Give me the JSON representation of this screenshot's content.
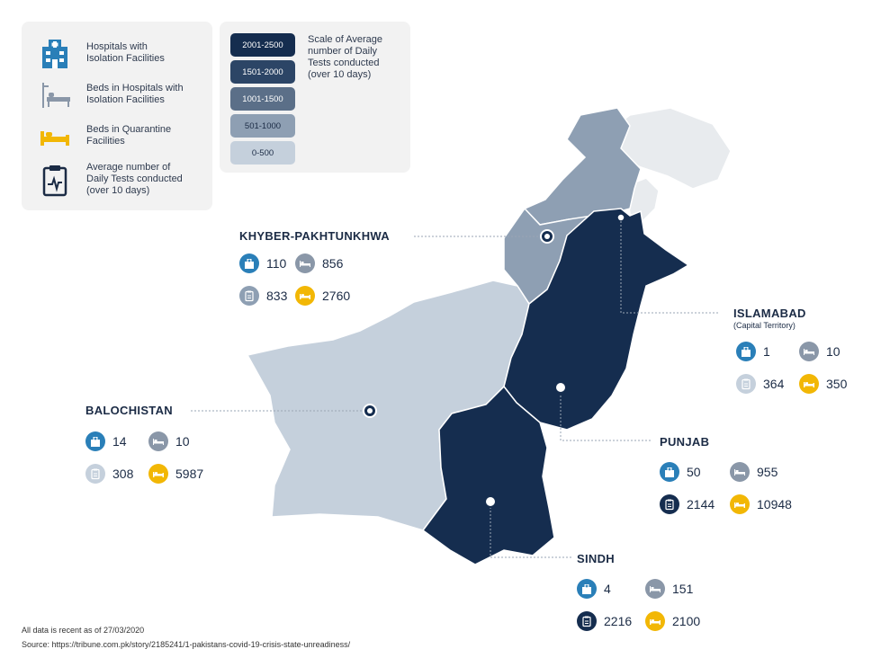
{
  "legend": {
    "items": [
      {
        "icon": "hospital-icon",
        "text": "Hospitals with\nIsolation Facilities"
      },
      {
        "icon": "hospital-bed-icon",
        "text": "Beds in Hospitals with\nIsolation Facilities"
      },
      {
        "icon": "quarantine-bed-icon",
        "text": "Beds in Quarantine\nFacilities"
      },
      {
        "icon": "clipboard-icon",
        "text": "Average number of\nDaily Tests conducted\n(over 10 days)"
      }
    ],
    "scale_title": "Scale of Average\nnumber of Daily\nTests conducted\n(over 10 days)",
    "scale": [
      {
        "label": "2001-2500",
        "color": "#152d4f"
      },
      {
        "label": "1501-2000",
        "color": "#2c4566"
      },
      {
        "label": "1001-1500",
        "color": "#5b6f88"
      },
      {
        "label": "501-1000",
        "color": "#8e9fb3"
      },
      {
        "label": "0-500",
        "color": "#c5d0dc"
      }
    ]
  },
  "colors": {
    "hospital": "#2a7fb8",
    "beds": "#8a97a8",
    "quarantine": "#f2b705",
    "tests_light": "#c5d0dc",
    "tests_mid": "#8e9fb3",
    "tests_dark": "#152d4f"
  },
  "regions": {
    "kp": {
      "name": "KHYBER-PAKHTUNKHWA",
      "hospitals": "110",
      "beds": "856",
      "tests": "833",
      "quarantine": "2760"
    },
    "islamabad": {
      "name": "ISLAMABAD",
      "sub": "(Capital Territory)",
      "hospitals": "1",
      "beds": "10",
      "tests": "364",
      "quarantine": "350"
    },
    "balochistan": {
      "name": "BALOCHISTAN",
      "hospitals": "14",
      "beds": "10",
      "tests": "308",
      "quarantine": "5987"
    },
    "punjab": {
      "name": "PUNJAB",
      "hospitals": "50",
      "beds": "955",
      "tests": "2144",
      "quarantine": "10948"
    },
    "sindh": {
      "name": "SINDH",
      "hospitals": "4",
      "beds": "151",
      "tests": "2216",
      "quarantine": "2100"
    }
  },
  "footer": {
    "note": "All data is recent as of 27/03/2020",
    "source": "Source: https://tribune.com.pk/story/2185241/1-pakistans-covid-19-crisis-state-unreadiness/"
  }
}
